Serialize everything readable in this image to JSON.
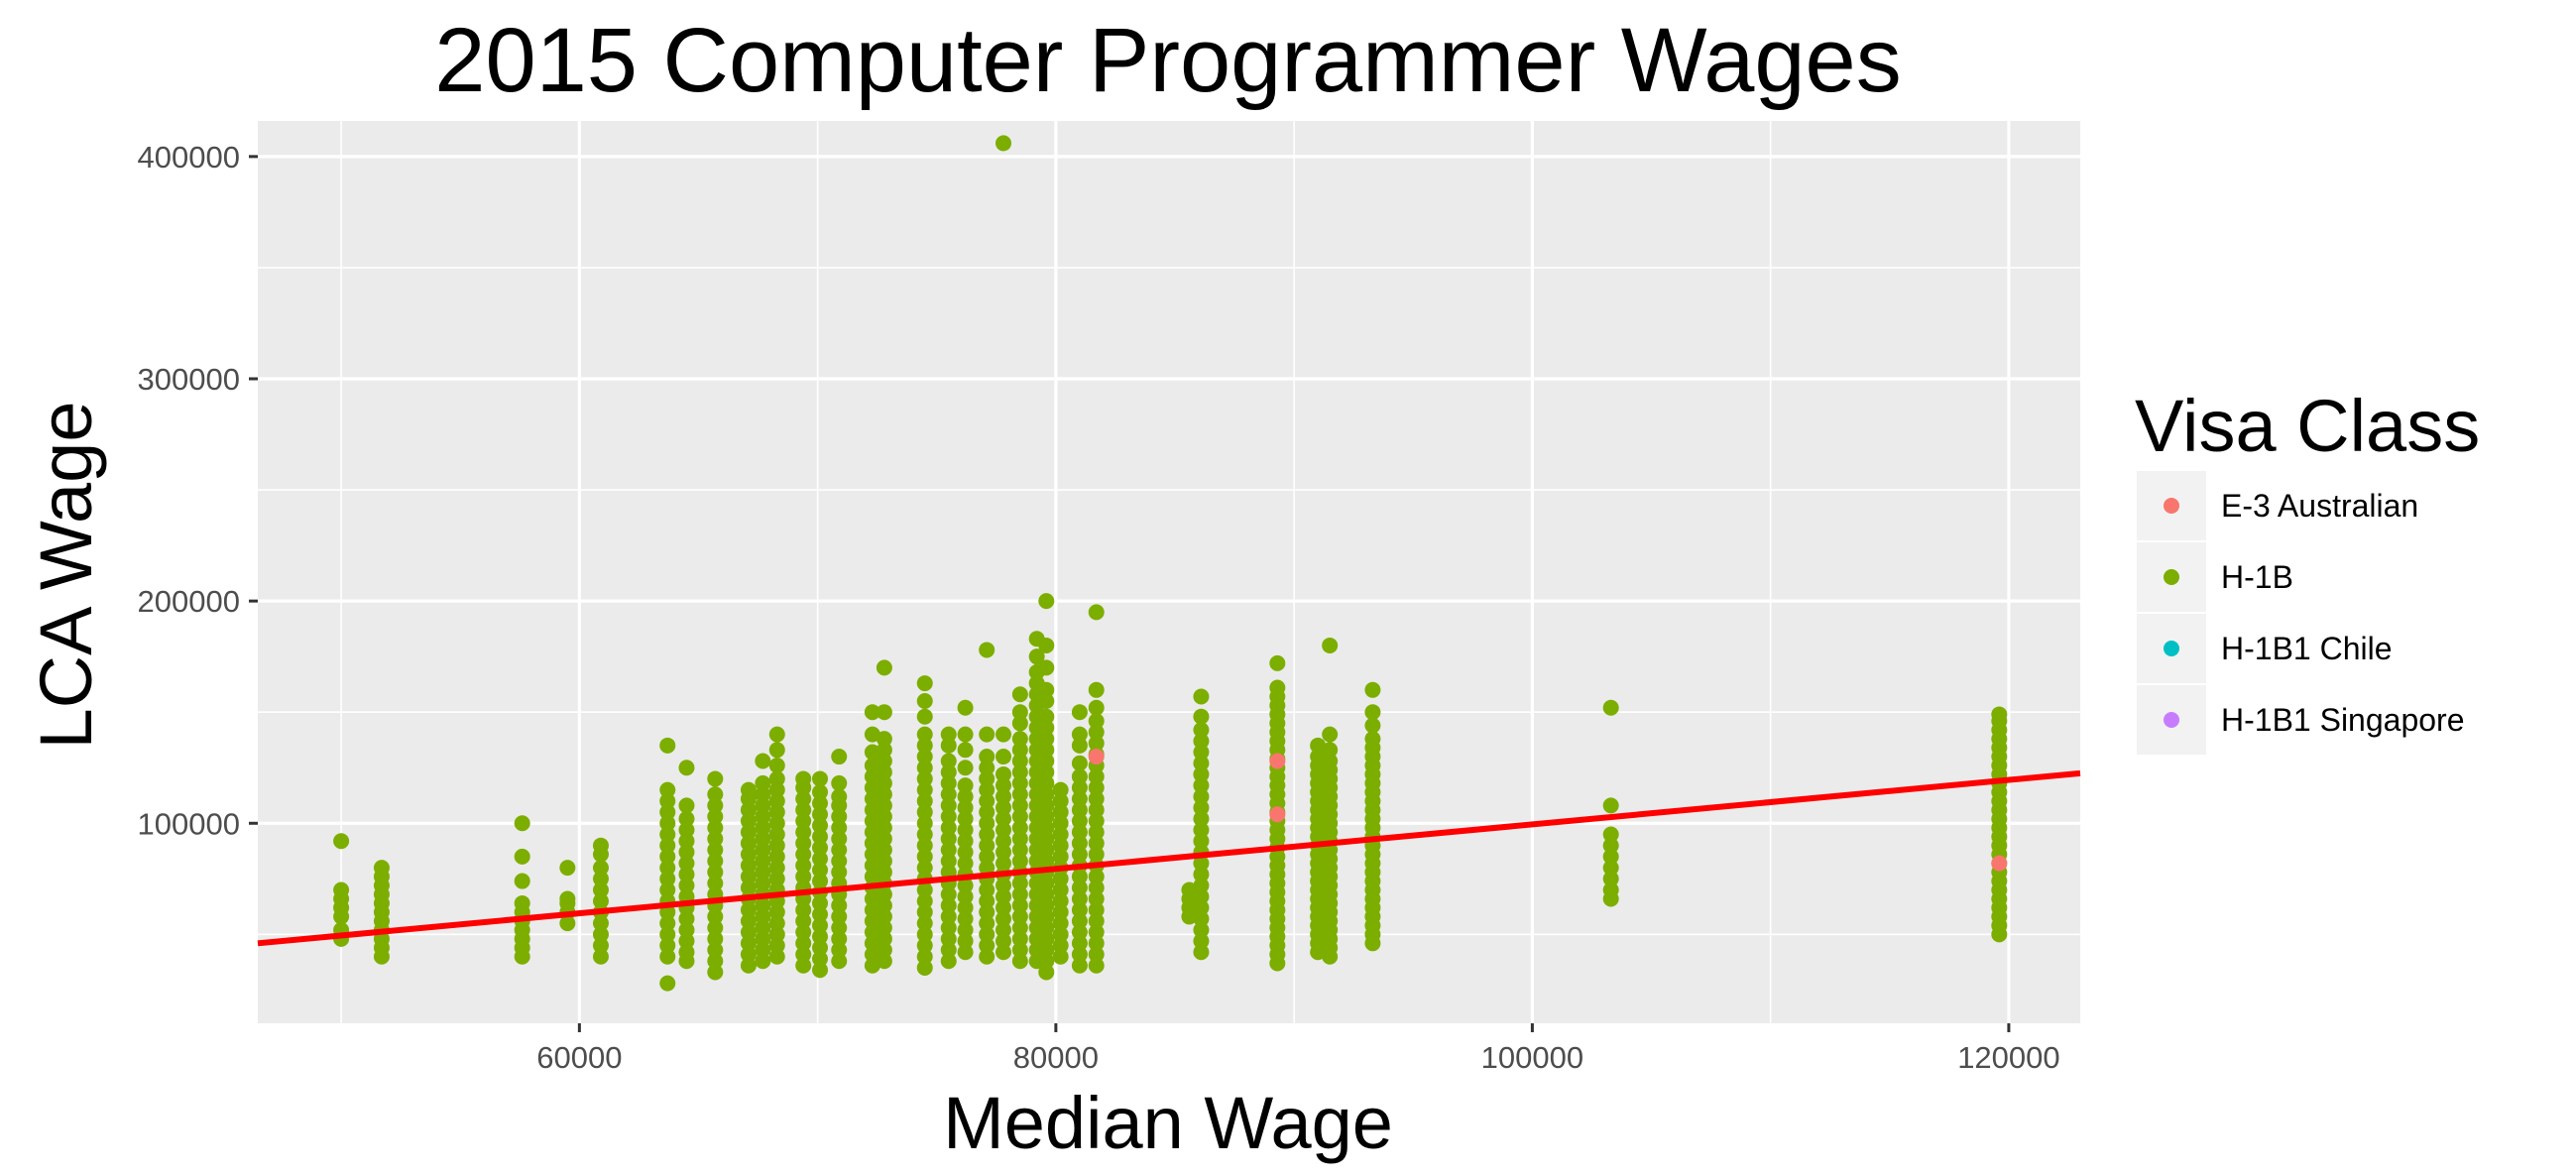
{
  "chart_data": {
    "type": "scatter",
    "title": "2015 Computer Programmer Wages",
    "xlabel": "Median Wage",
    "ylabel": "LCA Wage",
    "xlim": [
      46500,
      123000
    ],
    "ylim": [
      10000,
      416000
    ],
    "x_ticks": [
      60000,
      80000,
      100000,
      120000
    ],
    "x_tick_labels": [
      "60000",
      "80000",
      "100000",
      "120000"
    ],
    "y_ticks": [
      100000,
      200000,
      300000,
      400000
    ],
    "y_tick_labels": [
      "100000",
      "200000",
      "300000",
      "400000"
    ],
    "grid": true,
    "legend": {
      "title": "Visa Class",
      "placement": "right",
      "entries": [
        {
          "label": "E-3 Australian",
          "color": "#F8766D"
        },
        {
          "label": "H-1B",
          "color": "#7CAE00"
        },
        {
          "label": "H-1B1 Chile",
          "color": "#00BFC4"
        },
        {
          "label": "H-1B1 Singapore",
          "color": "#C77CFF"
        }
      ]
    },
    "colors": {
      "panel_background": "#EBEBEB",
      "grid_major": "#FFFFFF",
      "trend_line": "#FF0000",
      "tick_text": "#4D4D4D"
    },
    "trend_line": {
      "x": [
        46500,
        123000
      ],
      "y": [
        46000,
        122500
      ]
    },
    "series": [
      {
        "name": "H-1B",
        "color": "#7CAE00",
        "columns": [
          {
            "x": 50000,
            "y": [
              48000,
              52000,
              58000,
              62000,
              66000,
              70000,
              92000
            ]
          },
          {
            "x": 51700,
            "y": [
              40000,
              44000,
              48000,
              52000,
              56000,
              60000,
              64000,
              68000,
              72000,
              76000,
              80000
            ]
          },
          {
            "x": 57600,
            "y": [
              40000,
              44000,
              48000,
              52000,
              56000,
              60000,
              64000,
              74000,
              85000,
              100000
            ]
          },
          {
            "x": 59500,
            "y": [
              55000,
              60000,
              64000,
              66000,
              80000
            ]
          },
          {
            "x": 60900,
            "y": [
              40000,
              45000,
              50000,
              55000,
              60000,
              65000,
              70000,
              75000,
              80000,
              86000,
              90000
            ]
          },
          {
            "x": 63700,
            "y": [
              28000,
              40000,
              45000,
              50000,
              55000,
              60000,
              65000,
              70000,
              75000,
              80000,
              85000,
              90000,
              95000,
              100000,
              105000,
              110000,
              115000,
              135000
            ]
          },
          {
            "x": 64500,
            "y": [
              38000,
              42000,
              47000,
              52000,
              57000,
              62000,
              67000,
              72000,
              77000,
              82000,
              87000,
              92000,
              97000,
              102000,
              108000,
              125000
            ]
          },
          {
            "x": 65700,
            "y": [
              33000,
              38000,
              43000,
              48000,
              53000,
              58000,
              63000,
              68000,
              73000,
              78000,
              83000,
              88000,
              93000,
              98000,
              103000,
              108000,
              113000,
              120000
            ]
          },
          {
            "x": 67100,
            "y": [
              36000,
              41000,
              46000,
              51000,
              56000,
              61000,
              66000,
              71000,
              76000,
              81000,
              86000,
              91000,
              96000,
              101000,
              106000,
              111000,
              115000
            ]
          },
          {
            "x": 67700,
            "y": [
              38000,
              43000,
              48000,
              53000,
              58000,
              63000,
              68000,
              73000,
              78000,
              83000,
              88000,
              93000,
              98000,
              103000,
              108000,
              113000,
              118000,
              128000
            ]
          },
          {
            "x": 68300,
            "y": [
              40000,
              45000,
              50000,
              55000,
              60000,
              65000,
              70000,
              75000,
              80000,
              85000,
              90000,
              95000,
              100000,
              105000,
              110000,
              115000,
              120000,
              126000,
              133000,
              140000
            ]
          },
          {
            "x": 69400,
            "y": [
              36000,
              41000,
              46000,
              51000,
              56000,
              61000,
              66000,
              71000,
              76000,
              81000,
              86000,
              91000,
              96000,
              101000,
              106000,
              111000,
              116000,
              120000
            ]
          },
          {
            "x": 70100,
            "y": [
              34000,
              39000,
              44000,
              49000,
              54000,
              59000,
              64000,
              69000,
              74000,
              79000,
              84000,
              89000,
              94000,
              99000,
              104000,
              109000,
              114000,
              120000
            ]
          },
          {
            "x": 70900,
            "y": [
              38000,
              43000,
              48000,
              53000,
              58000,
              63000,
              68000,
              73000,
              78000,
              83000,
              88000,
              93000,
              98000,
              103000,
              108000,
              112000,
              118000,
              130000
            ]
          },
          {
            "x": 72300,
            "y": [
              36000,
              41000,
              46000,
              51000,
              56000,
              61000,
              66000,
              71000,
              76000,
              81000,
              86000,
              91000,
              96000,
              101000,
              106000,
              111000,
              116000,
              121000,
              126000,
              132000,
              140000,
              150000
            ]
          },
          {
            "x": 72800,
            "y": [
              38000,
              43000,
              48000,
              53000,
              58000,
              63000,
              68000,
              73000,
              78000,
              83000,
              88000,
              93000,
              98000,
              103000,
              108000,
              113000,
              118000,
              123000,
              128000,
              133000,
              138000,
              150000,
              170000
            ]
          },
          {
            "x": 74500,
            "y": [
              35000,
              40000,
              45000,
              50000,
              55000,
              60000,
              65000,
              70000,
              75000,
              80000,
              85000,
              90000,
              95000,
              100000,
              105000,
              110000,
              115000,
              120000,
              125000,
              130000,
              135000,
              140000,
              148000,
              155000,
              163000
            ]
          },
          {
            "x": 75500,
            "y": [
              38000,
              43000,
              48000,
              53000,
              58000,
              63000,
              68000,
              73000,
              78000,
              83000,
              88000,
              93000,
              98000,
              103000,
              108000,
              113000,
              118000,
              123000,
              128000,
              135000,
              140000
            ]
          },
          {
            "x": 76200,
            "y": [
              42000,
              47000,
              52000,
              57000,
              62000,
              67000,
              72000,
              77000,
              82000,
              87000,
              92000,
              97000,
              102000,
              107000,
              112000,
              117000,
              125000,
              133000,
              140000,
              152000
            ]
          },
          {
            "x": 77100,
            "y": [
              40000,
              45000,
              50000,
              55000,
              60000,
              65000,
              70000,
              75000,
              80000,
              85000,
              90000,
              95000,
              100000,
              105000,
              110000,
              115000,
              120000,
              125000,
              130000,
              140000,
              178000
            ]
          },
          {
            "x": 77800,
            "y": [
              42000,
              47000,
              52000,
              57000,
              62000,
              67000,
              72000,
              77000,
              82000,
              87000,
              92000,
              97000,
              102000,
              107000,
              112000,
              117000,
              122000,
              130000,
              140000,
              406000
            ]
          },
          {
            "x": 78500,
            "y": [
              38000,
              43000,
              48000,
              53000,
              58000,
              63000,
              68000,
              73000,
              78000,
              83000,
              88000,
              93000,
              98000,
              103000,
              108000,
              113000,
              118000,
              123000,
              128000,
              133000,
              138000,
              145000,
              150000,
              158000
            ]
          },
          {
            "x": 79200,
            "y": [
              38000,
              43000,
              48000,
              53000,
              58000,
              63000,
              68000,
              73000,
              78000,
              83000,
              88000,
              93000,
              98000,
              103000,
              108000,
              113000,
              118000,
              123000,
              128000,
              133000,
              138000,
              143000,
              148000,
              153000,
              158000,
              163000,
              168000,
              175000,
              183000
            ]
          },
          {
            "x": 79600,
            "y": [
              33000,
              38000,
              43000,
              48000,
              53000,
              58000,
              63000,
              68000,
              73000,
              78000,
              83000,
              88000,
              93000,
              98000,
              103000,
              108000,
              113000,
              118000,
              123000,
              128000,
              133000,
              138000,
              143000,
              148000,
              155000,
              160000,
              170000,
              180000,
              200000
            ]
          },
          {
            "x": 80200,
            "y": [
              40000,
              45000,
              50000,
              55000,
              60000,
              65000,
              70000,
              75000,
              80000,
              85000,
              90000,
              95000,
              100000,
              105000,
              110000,
              115000
            ]
          },
          {
            "x": 81000,
            "y": [
              36000,
              41000,
              46000,
              51000,
              56000,
              61000,
              66000,
              71000,
              76000,
              81000,
              86000,
              91000,
              96000,
              101000,
              106000,
              111000,
              116000,
              121000,
              127000,
              135000,
              140000,
              150000
            ]
          },
          {
            "x": 81700,
            "y": [
              36000,
              41000,
              46000,
              51000,
              56000,
              61000,
              66000,
              71000,
              76000,
              81000,
              86000,
              91000,
              96000,
              101000,
              106000,
              111000,
              116000,
              121000,
              126000,
              131000,
              136000,
              141000,
              146000,
              152000,
              160000,
              195000
            ]
          },
          {
            "x": 85600,
            "y": [
              58000,
              62000,
              66000,
              70000
            ]
          },
          {
            "x": 86100,
            "y": [
              42000,
              47000,
              52000,
              57000,
              62000,
              67000,
              72000,
              77000,
              82000,
              87000,
              92000,
              97000,
              102000,
              107000,
              112000,
              117000,
              122000,
              127000,
              132000,
              137000,
              142000,
              148000,
              157000
            ]
          },
          {
            "x": 89300,
            "y": [
              37000,
              41000,
              45000,
              49000,
              53000,
              57000,
              61000,
              65000,
              69000,
              73000,
              77000,
              81000,
              85000,
              89000,
              93000,
              97000,
              101000,
              105000,
              109000,
              113000,
              117000,
              121000,
              125000,
              129000,
              133000,
              137000,
              141000,
              145000,
              149000,
              153000,
              157000,
              161000,
              172000
            ]
          },
          {
            "x": 91000,
            "y": [
              42000,
              46000,
              50000,
              54000,
              58000,
              62000,
              66000,
              70000,
              74000,
              78000,
              82000,
              86000,
              90000,
              94000,
              98000,
              102000,
              106000,
              110000,
              114000,
              118000,
              122000,
              126000,
              130000,
              135000
            ]
          },
          {
            "x": 91500,
            "y": [
              40000,
              44000,
              48000,
              52000,
              56000,
              60000,
              64000,
              68000,
              72000,
              76000,
              80000,
              84000,
              88000,
              92000,
              96000,
              100000,
              104000,
              108000,
              112000,
              116000,
              120000,
              124000,
              128000,
              133000,
              140000,
              180000
            ]
          },
          {
            "x": 93300,
            "y": [
              46000,
              50000,
              54000,
              58000,
              62000,
              66000,
              70000,
              74000,
              78000,
              82000,
              86000,
              90000,
              94000,
              98000,
              102000,
              106000,
              110000,
              114000,
              118000,
              122000,
              126000,
              130000,
              134000,
              138000,
              144000,
              150000,
              160000
            ]
          },
          {
            "x": 103300,
            "y": [
              66000,
              70000,
              75000,
              80000,
              85000,
              90000,
              95000,
              108000,
              152000
            ]
          },
          {
            "x": 119600,
            "y": [
              50000,
              54000,
              58000,
              62000,
              66000,
              70000,
              74000,
              78000,
              82000,
              86000,
              90000,
              94000,
              98000,
              102000,
              106000,
              110000,
              114000,
              118000,
              122000,
              126000,
              130000,
              134000,
              138000,
              142000,
              146000,
              149000
            ]
          }
        ]
      },
      {
        "name": "E-3 Australian",
        "color": "#F8766D",
        "points": [
          [
            81700,
            130000
          ],
          [
            89300,
            128000
          ],
          [
            89300,
            104000
          ],
          [
            119600,
            82000
          ]
        ]
      }
    ]
  }
}
